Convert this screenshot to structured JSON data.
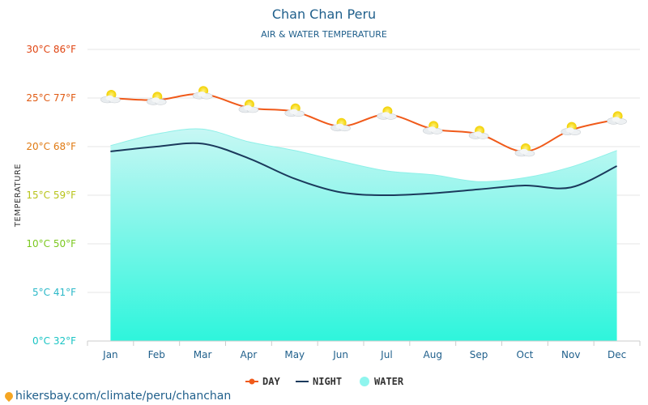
{
  "chart_data": {
    "type": "line",
    "title": "Chan Chan Peru",
    "subtitle": "AIR & WATER TEMPERATURE",
    "ylabel": "TEMPERATURE",
    "ylim": [
      0,
      30
    ],
    "grid": true,
    "legend_position": "bottom-center",
    "y_ticks": [
      {
        "value": 0,
        "label": "0°C 32°F",
        "color": "#1ac4c4"
      },
      {
        "value": 5,
        "label": "5°C 41°F",
        "color": "#2ab8c8"
      },
      {
        "value": 10,
        "label": "10°C 50°F",
        "color": "#7bc81e"
      },
      {
        "value": 15,
        "label": "15°C 59°F",
        "color": "#b8c41a"
      },
      {
        "value": 20,
        "label": "20°C 68°F",
        "color": "#e07a12"
      },
      {
        "value": 25,
        "label": "25°C 77°F",
        "color": "#e05a12"
      },
      {
        "value": 30,
        "label": "30°C 86°F",
        "color": "#e04512"
      }
    ],
    "categories": [
      "Jan",
      "Feb",
      "Mar",
      "Apr",
      "May",
      "Jun",
      "Jul",
      "Aug",
      "Sep",
      "Oct",
      "Nov",
      "Dec"
    ],
    "series": [
      {
        "name": "DAY",
        "kind": "line",
        "color": "#f05a1a",
        "values": [
          25.0,
          24.8,
          25.4,
          24.0,
          23.6,
          22.1,
          23.3,
          21.8,
          21.3,
          19.5,
          21.7,
          22.8
        ]
      },
      {
        "name": "NIGHT",
        "kind": "line",
        "color": "#1b3a5c",
        "values": [
          19.5,
          20.0,
          20.3,
          18.8,
          16.7,
          15.3,
          15.0,
          15.2,
          15.6,
          16.0,
          15.8,
          18.0
        ]
      },
      {
        "name": "WATER",
        "kind": "area",
        "color": "#b9f6f2",
        "values": [
          20.1,
          21.3,
          21.8,
          20.5,
          19.6,
          18.5,
          17.5,
          17.1,
          16.4,
          16.8,
          17.9,
          19.6
        ]
      }
    ],
    "weather_icon": "partly-cloudy-icon"
  },
  "footer": {
    "icon": "location-pin-icon",
    "text": "hikersbay.com/climate/peru/chanchan"
  }
}
